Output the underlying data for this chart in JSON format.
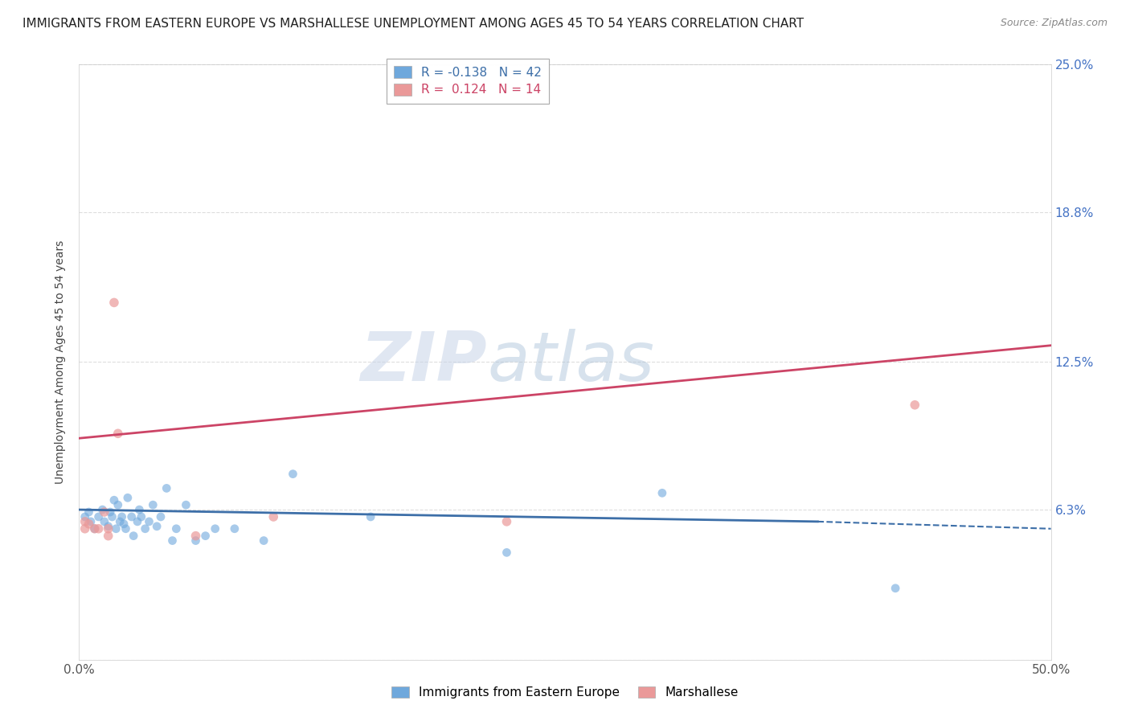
{
  "title": "IMMIGRANTS FROM EASTERN EUROPE VS MARSHALLESE UNEMPLOYMENT AMONG AGES 45 TO 54 YEARS CORRELATION CHART",
  "source": "Source: ZipAtlas.com",
  "ylabel": "Unemployment Among Ages 45 to 54 years",
  "xlim": [
    0.0,
    0.5
  ],
  "ylim": [
    0.0,
    0.25
  ],
  "yticks": [
    0.0,
    0.063,
    0.125,
    0.188,
    0.25
  ],
  "ytick_labels_right": [
    "",
    "6.3%",
    "12.5%",
    "18.8%",
    "25.0%"
  ],
  "xticks": [
    0.0,
    0.5
  ],
  "xtick_labels": [
    "0.0%",
    "50.0%"
  ],
  "blue_scatter_x": [
    0.003,
    0.005,
    0.006,
    0.008,
    0.01,
    0.012,
    0.013,
    0.015,
    0.016,
    0.017,
    0.018,
    0.019,
    0.02,
    0.021,
    0.022,
    0.023,
    0.024,
    0.025,
    0.027,
    0.028,
    0.03,
    0.031,
    0.032,
    0.034,
    0.036,
    0.038,
    0.04,
    0.042,
    0.045,
    0.048,
    0.05,
    0.055,
    0.06,
    0.065,
    0.07,
    0.08,
    0.095,
    0.11,
    0.15,
    0.22,
    0.3,
    0.42
  ],
  "blue_scatter_y": [
    0.06,
    0.062,
    0.058,
    0.055,
    0.06,
    0.063,
    0.058,
    0.056,
    0.062,
    0.06,
    0.067,
    0.055,
    0.065,
    0.058,
    0.06,
    0.057,
    0.055,
    0.068,
    0.06,
    0.052,
    0.058,
    0.063,
    0.06,
    0.055,
    0.058,
    0.065,
    0.056,
    0.06,
    0.072,
    0.05,
    0.055,
    0.065,
    0.05,
    0.052,
    0.055,
    0.055,
    0.05,
    0.078,
    0.06,
    0.045,
    0.07,
    0.03
  ],
  "pink_scatter_x": [
    0.003,
    0.005,
    0.008,
    0.01,
    0.013,
    0.015,
    0.018,
    0.02,
    0.06,
    0.1,
    0.22,
    0.43,
    0.003,
    0.015
  ],
  "pink_scatter_y": [
    0.058,
    0.057,
    0.055,
    0.055,
    0.062,
    0.055,
    0.15,
    0.095,
    0.052,
    0.06,
    0.058,
    0.107,
    0.055,
    0.052
  ],
  "blue_line_x": [
    0.0,
    0.38,
    0.5
  ],
  "blue_line_y": [
    0.063,
    0.058,
    0.055
  ],
  "blue_line_solid_end": 0.38,
  "pink_line_x": [
    0.0,
    0.5
  ],
  "pink_line_y_start": 0.093,
  "pink_line_y_end": 0.132,
  "blue_color": "#6fa8dc",
  "pink_color": "#ea9999",
  "blue_line_color": "#3d6fa8",
  "pink_line_color": "#cc4466",
  "legend_blue_R": "R = -0.138",
  "legend_blue_N": "N = 42",
  "legend_pink_R": "R =  0.124",
  "legend_pink_N": "N = 14",
  "watermark_zip": "ZIP",
  "watermark_atlas": "atlas",
  "background_color": "#ffffff",
  "grid_color": "#dddddd",
  "title_fontsize": 11,
  "axis_label_fontsize": 10,
  "tick_fontsize": 11,
  "legend_fontsize": 11
}
